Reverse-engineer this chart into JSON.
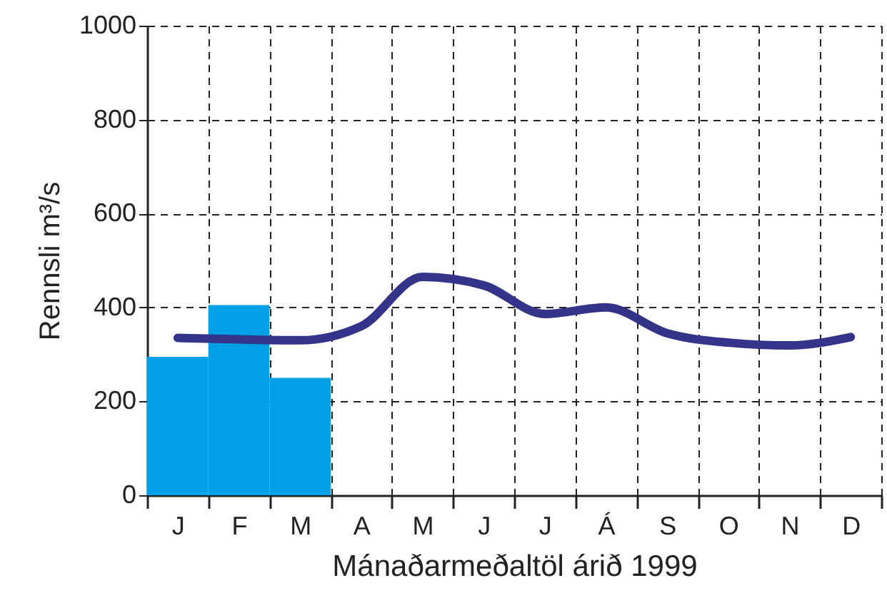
{
  "chart_data": {
    "type": "line",
    "xlabel": "Mánaðarmeðaltöl árið 1999",
    "ylabel": "Rennsli  m³/s",
    "categories": [
      "J",
      "F",
      "M",
      "A",
      "M",
      "J",
      "J",
      "Á",
      "S",
      "O",
      "N",
      "D"
    ],
    "ylim": [
      0,
      1000
    ],
    "yticks": [
      0,
      200,
      400,
      600,
      800,
      {
        "value": 1000,
        "label": "1000"
      }
    ],
    "grid": true,
    "line_style": "solid",
    "marker": "none",
    "series": [
      {
        "type": "bar",
        "color": "#00a0e6",
        "values": [
          295,
          405,
          250,
          null,
          null,
          null,
          null,
          null,
          null,
          null,
          null,
          null
        ]
      },
      {
        "color": "#33338a",
        "values": [
          335,
          332,
          330,
          360,
          465,
          447,
          386,
          400,
          345,
          325,
          319,
          337
        ]
      }
    ]
  }
}
